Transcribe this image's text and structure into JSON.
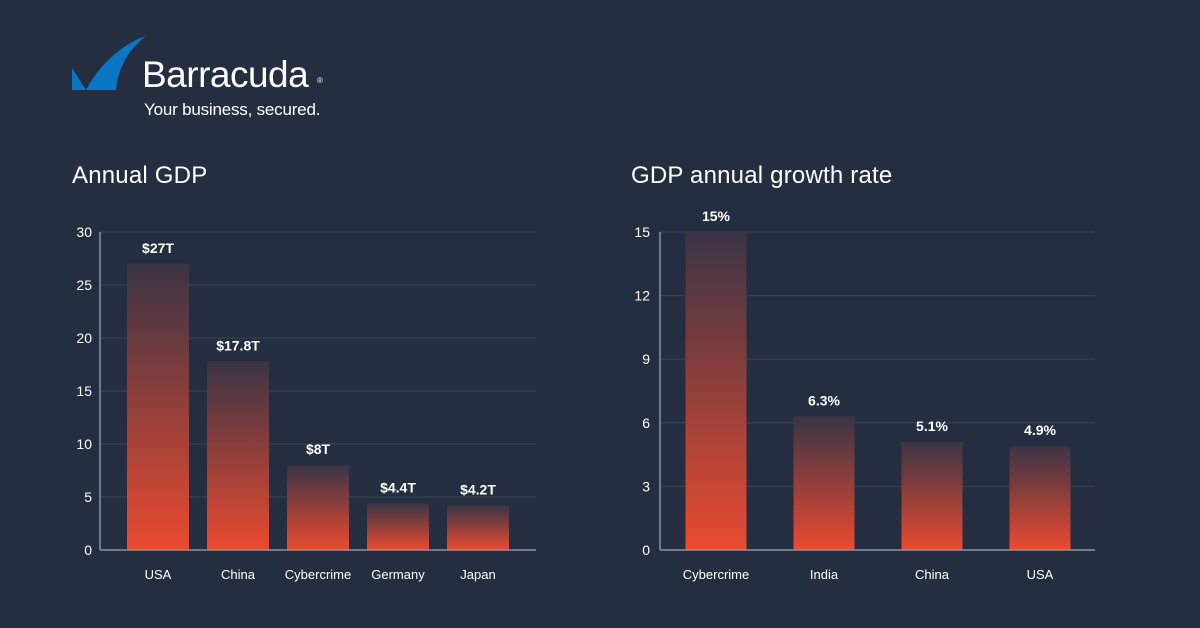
{
  "brand": {
    "name": "Barracuda",
    "registered": "®",
    "tagline": "Your business, secured.",
    "color": "#0a76c4"
  },
  "colors": {
    "background": "#252e40",
    "bar_top": "#3a3445",
    "bar_bottom": "#ea4a30",
    "grid": "#3b4457",
    "axis": "#8a93a3"
  },
  "chart_data": [
    {
      "type": "bar",
      "title": "Annual GDP",
      "categories": [
        "USA",
        "China",
        "Cybercrime",
        "Germany",
        "Japan"
      ],
      "values": [
        27,
        17.8,
        8,
        4.4,
        4.2
      ],
      "data_labels": [
        "$27T",
        "$17.8T",
        "$8T",
        "$4.4T",
        "$4.2T"
      ],
      "yticks": [
        0,
        5,
        10,
        15,
        20,
        25,
        30
      ],
      "ylim": [
        0,
        30
      ],
      "xlabel": "",
      "ylabel": "",
      "grid": true
    },
    {
      "type": "bar",
      "title": "GDP annual growth rate",
      "categories": [
        "Cybercrime",
        "India",
        "China",
        "USA"
      ],
      "values": [
        15,
        6.3,
        5.1,
        4.9
      ],
      "data_labels": [
        "15%",
        "6.3%",
        "5.1%",
        "4.9%"
      ],
      "yticks": [
        0,
        3,
        6,
        9,
        12,
        15
      ],
      "ylim": [
        0,
        15
      ],
      "xlabel": "",
      "ylabel": "",
      "grid": true
    }
  ]
}
